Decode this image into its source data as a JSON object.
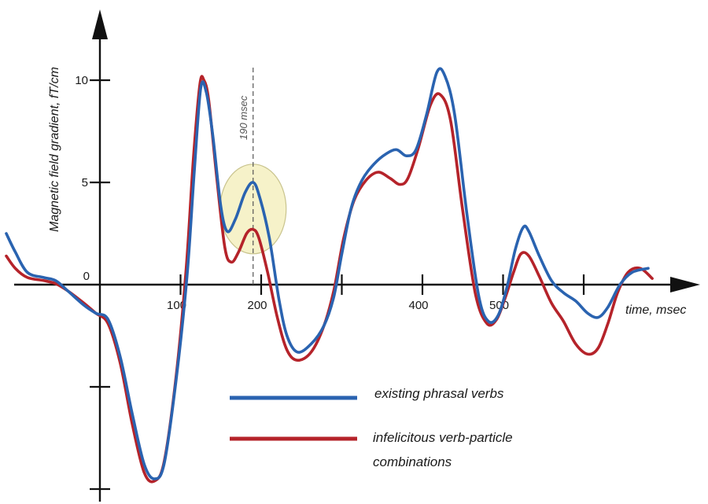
{
  "chart_data": {
    "type": "line",
    "xlabel": "time, msec",
    "ylabel": "Magnetic field gradient, fT/cm",
    "x_ticks": [
      100,
      200,
      300,
      400,
      500,
      600
    ],
    "x_tick_labels": [
      "100",
      "200",
      "",
      "400",
      "500",
      ""
    ],
    "y_ticks": [
      -10,
      -5,
      0,
      5,
      10
    ],
    "y_tick_labels": [
      "",
      "",
      "0",
      "5",
      "10"
    ],
    "xlim": [
      -120,
      650
    ],
    "ylim": [
      -10.5,
      13.5
    ],
    "annotation": {
      "label": "190 msec",
      "x": 190,
      "highlight": {
        "x": 190,
        "y": 3.7
      }
    },
    "grid": false,
    "legend_position": "bottom-right",
    "series": [
      {
        "name": "existing phrasal verbs",
        "color": "#2a63b0",
        "points": [
          [
            -120,
            2.5
          ],
          [
            -105,
            1.6
          ],
          [
            -90,
            0.6
          ],
          [
            -70,
            0.35
          ],
          [
            -55,
            0.2
          ],
          [
            -40,
            -0.3
          ],
          [
            -20,
            -1.0
          ],
          [
            -5,
            -1.4
          ],
          [
            10,
            -1.7
          ],
          [
            25,
            -3.5
          ],
          [
            40,
            -6.3
          ],
          [
            55,
            -8.8
          ],
          [
            68,
            -9.5
          ],
          [
            80,
            -8.7
          ],
          [
            95,
            -4.5
          ],
          [
            108,
            0.4
          ],
          [
            117,
            5.5
          ],
          [
            125,
            9.6
          ],
          [
            132,
            9.4
          ],
          [
            140,
            7.3
          ],
          [
            150,
            3.8
          ],
          [
            158,
            2.6
          ],
          [
            168,
            3.2
          ],
          [
            180,
            4.5
          ],
          [
            190,
            5.0
          ],
          [
            198,
            4.3
          ],
          [
            210,
            2.3
          ],
          [
            222,
            -0.7
          ],
          [
            232,
            -2.5
          ],
          [
            245,
            -3.3
          ],
          [
            262,
            -2.9
          ],
          [
            278,
            -2.0
          ],
          [
            290,
            -0.6
          ],
          [
            300,
            1.5
          ],
          [
            312,
            3.8
          ],
          [
            325,
            5.1
          ],
          [
            340,
            5.9
          ],
          [
            355,
            6.4
          ],
          [
            368,
            6.6
          ],
          [
            380,
            6.3
          ],
          [
            392,
            6.6
          ],
          [
            405,
            8.3
          ],
          [
            418,
            10.4
          ],
          [
            428,
            10.2
          ],
          [
            440,
            8.3
          ],
          [
            455,
            3.5
          ],
          [
            470,
            -0.6
          ],
          [
            482,
            -1.8
          ],
          [
            494,
            -1.5
          ],
          [
            505,
            -0.1
          ],
          [
            515,
            1.7
          ],
          [
            525,
            2.8
          ],
          [
            532,
            2.6
          ],
          [
            545,
            1.4
          ],
          [
            560,
            0.2
          ],
          [
            575,
            -0.4
          ],
          [
            590,
            -0.8
          ],
          [
            605,
            -1.4
          ],
          [
            618,
            -1.6
          ],
          [
            630,
            -1.1
          ],
          [
            645,
            0.0
          ],
          [
            660,
            0.6
          ],
          [
            680,
            0.8
          ]
        ]
      },
      {
        "name": "infelicitous verb-particle combinations",
        "color": "#b5232a",
        "points": [
          [
            -120,
            1.4
          ],
          [
            -105,
            0.8
          ],
          [
            -90,
            0.35
          ],
          [
            -70,
            0.2
          ],
          [
            -55,
            0.05
          ],
          [
            -40,
            -0.3
          ],
          [
            -20,
            -0.9
          ],
          [
            -5,
            -1.4
          ],
          [
            10,
            -1.9
          ],
          [
            25,
            -3.8
          ],
          [
            40,
            -6.8
          ],
          [
            55,
            -9.2
          ],
          [
            68,
            -9.6
          ],
          [
            80,
            -8.6
          ],
          [
            95,
            -4.3
          ],
          [
            107,
            0.8
          ],
          [
            116,
            6.2
          ],
          [
            124,
            9.8
          ],
          [
            129,
            10.0
          ],
          [
            135,
            9.0
          ],
          [
            145,
            5.2
          ],
          [
            155,
            1.8
          ],
          [
            163,
            1.1
          ],
          [
            172,
            1.6
          ],
          [
            182,
            2.5
          ],
          [
            190,
            2.7
          ],
          [
            197,
            2.3
          ],
          [
            208,
            0.6
          ],
          [
            220,
            -1.6
          ],
          [
            232,
            -3.2
          ],
          [
            245,
            -3.7
          ],
          [
            262,
            -3.3
          ],
          [
            278,
            -2.0
          ],
          [
            290,
            -0.3
          ],
          [
            302,
            2.2
          ],
          [
            315,
            4.1
          ],
          [
            330,
            5.1
          ],
          [
            345,
            5.5
          ],
          [
            360,
            5.2
          ],
          [
            372,
            4.9
          ],
          [
            382,
            5.2
          ],
          [
            395,
            6.7
          ],
          [
            410,
            8.8
          ],
          [
            422,
            9.3
          ],
          [
            435,
            8.0
          ],
          [
            450,
            3.6
          ],
          [
            466,
            -0.5
          ],
          [
            480,
            -1.9
          ],
          [
            492,
            -1.7
          ],
          [
            503,
            -0.6
          ],
          [
            513,
            0.6
          ],
          [
            522,
            1.5
          ],
          [
            532,
            1.4
          ],
          [
            545,
            0.4
          ],
          [
            560,
            -0.9
          ],
          [
            575,
            -1.8
          ],
          [
            590,
            -2.9
          ],
          [
            605,
            -3.4
          ],
          [
            618,
            -3.1
          ],
          [
            630,
            -1.9
          ],
          [
            642,
            -0.4
          ],
          [
            655,
            0.6
          ],
          [
            670,
            0.8
          ],
          [
            685,
            0.3
          ]
        ]
      }
    ]
  }
}
